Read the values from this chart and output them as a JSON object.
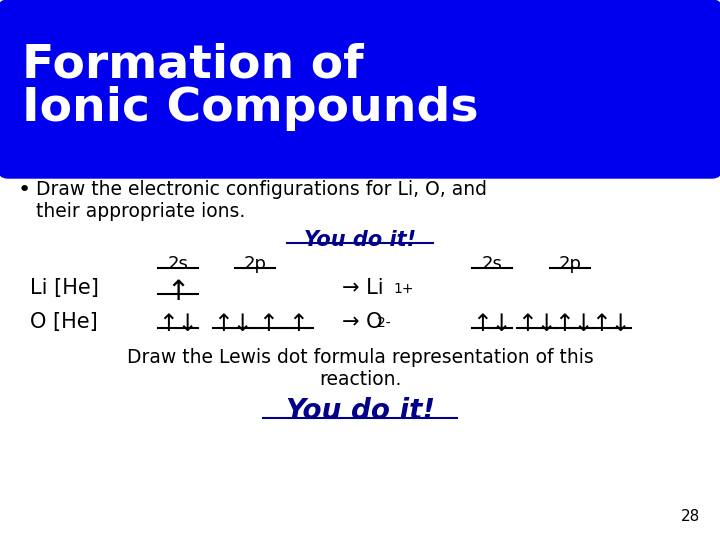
{
  "title_line1": "Formation of",
  "title_line2": "Ionic Compounds",
  "title_bg": "#0000EE",
  "title_text_color": "#FFFFFF",
  "body_bg": "#FFFFFF",
  "bullet_text1": "Draw the electronic configurations for Li, O, and",
  "bullet_text2": "their appropriate ions.",
  "you_do_it_color": "#00008B",
  "page_number": "28",
  "bottom_text1": "Draw the Lewis dot formula representation of this",
  "bottom_text2": "reaction."
}
